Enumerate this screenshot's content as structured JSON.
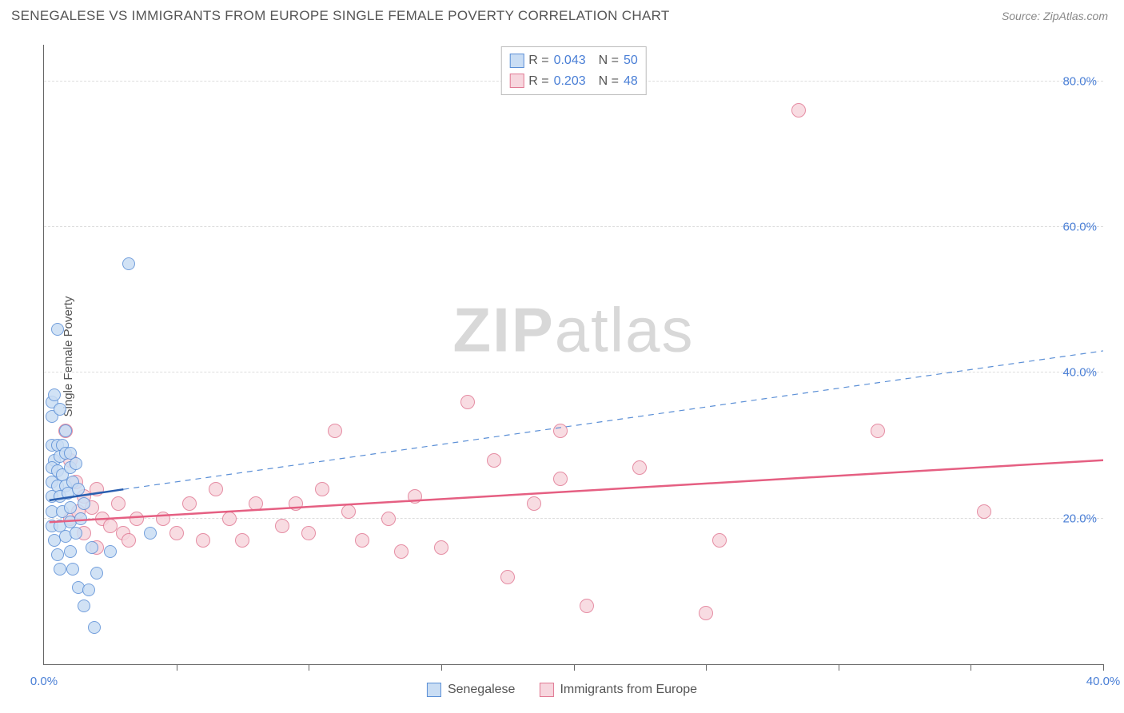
{
  "header": {
    "title": "SENEGALESE VS IMMIGRANTS FROM EUROPE SINGLE FEMALE POVERTY CORRELATION CHART",
    "source": "Source: ZipAtlas.com"
  },
  "ylabel": "Single Female Poverty",
  "watermark_zip": "ZIP",
  "watermark_atlas": "atlas",
  "chart": {
    "xlim": [
      0,
      40
    ],
    "ylim": [
      0,
      85
    ],
    "ytick_values": [
      20,
      40,
      60,
      80
    ],
    "ytick_labels": [
      "20.0%",
      "40.0%",
      "60.0%",
      "80.0%"
    ],
    "xtick_values": [
      0,
      5,
      10,
      15,
      20,
      25,
      30,
      35,
      40
    ],
    "xtick_labels_shown": {
      "0": "0.0%",
      "40": "40.0%"
    },
    "grid_color": "#dddddd",
    "background_color": "#ffffff"
  },
  "series": {
    "senegalese": {
      "label": "Senegalese",
      "R": "0.043",
      "N": "50",
      "marker_fill": "#c9ddf4",
      "marker_stroke": "#5b8fd6",
      "marker_radius": 8,
      "trend_solid": {
        "x1": 0.2,
        "y1": 22.5,
        "x2": 3.0,
        "y2": 24.0,
        "color": "#2a5fb0",
        "width": 2.5
      },
      "trend_dashed": {
        "x1": 3.0,
        "y1": 24.0,
        "x2": 40.0,
        "y2": 43.0,
        "color": "#5b8fd6",
        "width": 1.2
      },
      "points": [
        [
          0.3,
          36
        ],
        [
          0.4,
          37
        ],
        [
          0.3,
          34
        ],
        [
          0.6,
          35
        ],
        [
          0.3,
          30
        ],
        [
          0.5,
          30
        ],
        [
          0.7,
          30
        ],
        [
          0.4,
          28
        ],
        [
          0.6,
          28.5
        ],
        [
          0.8,
          29
        ],
        [
          1.0,
          29
        ],
        [
          0.3,
          27
        ],
        [
          0.5,
          26.5
        ],
        [
          0.7,
          26
        ],
        [
          1.0,
          27
        ],
        [
          1.2,
          27.5
        ],
        [
          0.3,
          25
        ],
        [
          0.5,
          24.5
        ],
        [
          0.8,
          24.5
        ],
        [
          1.1,
          25
        ],
        [
          0.3,
          23
        ],
        [
          0.6,
          23
        ],
        [
          0.9,
          23.5
        ],
        [
          1.3,
          24
        ],
        [
          0.3,
          21
        ],
        [
          0.7,
          21
        ],
        [
          1.0,
          21.5
        ],
        [
          1.5,
          22
        ],
        [
          0.3,
          19
        ],
        [
          0.6,
          19
        ],
        [
          1.0,
          19.5
        ],
        [
          1.4,
          20
        ],
        [
          0.4,
          17
        ],
        [
          0.8,
          17.5
        ],
        [
          1.2,
          18
        ],
        [
          4.0,
          18
        ],
        [
          0.5,
          15
        ],
        [
          1.0,
          15.5
        ],
        [
          1.8,
          16
        ],
        [
          2.5,
          15.5
        ],
        [
          0.6,
          13
        ],
        [
          1.1,
          13
        ],
        [
          2.0,
          12.5
        ],
        [
          1.3,
          10.5
        ],
        [
          1.7,
          10.2
        ],
        [
          1.5,
          8
        ],
        [
          1.9,
          5
        ],
        [
          0.5,
          46
        ],
        [
          3.2,
          55
        ],
        [
          0.8,
          32
        ]
      ]
    },
    "europe": {
      "label": "Immigrants from Europe",
      "R": "0.203",
      "N": "48",
      "marker_fill": "#f7d6de",
      "marker_stroke": "#e17a94",
      "marker_radius": 9,
      "trend_solid": {
        "x1": 0.2,
        "y1": 19.5,
        "x2": 40.0,
        "y2": 28.0,
        "color": "#e55f82",
        "width": 2.5
      },
      "points": [
        [
          0.8,
          32
        ],
        [
          1.0,
          28
        ],
        [
          1.2,
          25
        ],
        [
          1.5,
          23
        ],
        [
          1.0,
          20
        ],
        [
          1.3,
          21
        ],
        [
          1.8,
          21.5
        ],
        [
          2.0,
          24
        ],
        [
          2.2,
          20
        ],
        [
          1.5,
          18
        ],
        [
          2.5,
          19
        ],
        [
          2.8,
          22
        ],
        [
          2.0,
          16
        ],
        [
          3.0,
          18
        ],
        [
          3.5,
          20
        ],
        [
          3.2,
          17
        ],
        [
          4.5,
          20
        ],
        [
          5.0,
          18
        ],
        [
          5.5,
          22
        ],
        [
          6.0,
          17
        ],
        [
          6.5,
          24
        ],
        [
          7.0,
          20
        ],
        [
          7.5,
          17
        ],
        [
          8.0,
          22
        ],
        [
          9.0,
          19
        ],
        [
          9.5,
          22
        ],
        [
          10.0,
          18
        ],
        [
          10.5,
          24
        ],
        [
          11.0,
          32
        ],
        [
          11.5,
          21
        ],
        [
          12.0,
          17
        ],
        [
          13.0,
          20
        ],
        [
          13.5,
          15.5
        ],
        [
          14.0,
          23
        ],
        [
          15.0,
          16
        ],
        [
          16.0,
          36
        ],
        [
          17.0,
          28
        ],
        [
          17.5,
          12
        ],
        [
          18.5,
          22
        ],
        [
          19.5,
          32
        ],
        [
          20.5,
          8
        ],
        [
          22.5,
          27
        ],
        [
          25.0,
          7
        ],
        [
          25.5,
          17
        ],
        [
          28.5,
          76
        ],
        [
          31.5,
          32
        ],
        [
          35.5,
          21
        ],
        [
          19.5,
          25.5
        ]
      ]
    }
  },
  "legend_top": {
    "r_label": "R =",
    "n_label": "N ="
  },
  "legend_bottom": {
    "items": [
      "senegalese",
      "europe"
    ]
  }
}
